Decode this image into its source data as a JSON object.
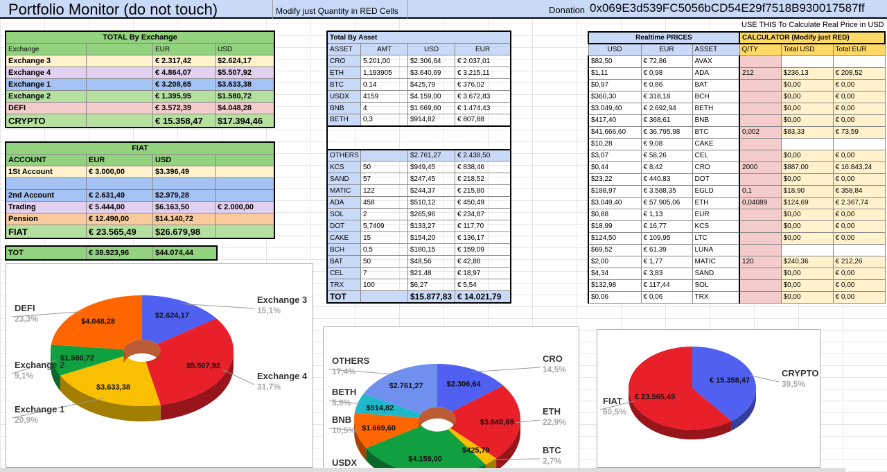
{
  "header": {
    "title": "Portfolio Monitor (do not touch)",
    "modify_note": "Modify just Quantity in RED Cells",
    "donation_label": "Donation",
    "donation_address": "0x069E3d539FC5056bCD54E29f7518B930017587ff"
  },
  "use_hint": "USE THIS To Calculate Real Price in USD",
  "exchange_table": {
    "title": "TOTAL By Exchange",
    "columns": [
      "Exchange",
      "EUR",
      "USD"
    ],
    "rows": [
      [
        "Exchange 3",
        "€ 2.317,42",
        "$2.624,17"
      ],
      [
        "Exchange 4",
        "€ 4.864,07",
        "$5.507,92"
      ],
      [
        "Exchange 1",
        "€ 3.208,65",
        "$3.633,38"
      ],
      [
        "Exchange 2",
        "€ 1.395,95",
        "$1.580,72"
      ],
      [
        "DEFI",
        "€ 3.572,39",
        "$4.048,28"
      ]
    ],
    "total": [
      "CRYPTO",
      "€ 15.358,47",
      "$17.394,46"
    ]
  },
  "fiat_table": {
    "title": "FIAT",
    "columns": [
      "ACCOUNT",
      "EUR",
      "USD"
    ],
    "rows": [
      [
        "1St Account",
        "€ 3.000,00",
        "$3.396,49",
        ""
      ],
      [
        "",
        "",
        " ",
        ""
      ],
      [
        "2nd Account",
        "€ 2.631,49",
        "$2.979,28",
        ""
      ],
      [
        "Trading",
        "€ 5.444,00",
        "$6.163,50",
        "€ 2.000,00"
      ],
      [
        "Pension",
        "€ 12.490,00",
        "$14.140,72",
        ""
      ]
    ],
    "total": [
      "FIAT",
      "€ 23.565,49",
      "$26.679,98"
    ]
  },
  "tot_row": [
    "TOT",
    "€ 38.923,96",
    "$44.074,44"
  ],
  "asset_table": {
    "title": "Total By Asset",
    "columns": [
      "ASSET",
      "AMT",
      "USD",
      "EUR"
    ],
    "rows": [
      [
        "CRO",
        "5.201,00",
        "$2.306,64",
        "€ 2.037,01"
      ],
      [
        "ETH",
        "1,193905",
        "$3.640,69",
        "€ 3.215,11"
      ],
      [
        "BTC",
        "0.14",
        "$425,79",
        "€ 376,02"
      ],
      [
        "USDX",
        "4159",
        "$4.159,00",
        "€ 3.672,83"
      ],
      [
        "BNB",
        "4",
        "$1.669,60",
        "€ 1.474,43"
      ],
      [
        "BETH",
        "0,3",
        "$914,82",
        "€ 807,88"
      ]
    ],
    "rows2": [
      [
        "OTHERS",
        "",
        "$2.761,27",
        "€ 2.438,50"
      ],
      [
        "KCS",
        "50",
        "$949,45",
        "€ 838,46"
      ],
      [
        "SAND",
        "57",
        "$247,45",
        "€ 218,52"
      ],
      [
        "MATIC",
        "122",
        "$244,37",
        "€ 215,80"
      ],
      [
        "ADA",
        "458",
        "$510,12",
        "€ 450,49"
      ],
      [
        "SOL",
        "2",
        "$265,96",
        "€ 234,87"
      ],
      [
        "DOT",
        "5,7409",
        "$133,27",
        "€ 117,70"
      ],
      [
        "CAKE",
        "15",
        "$154,20",
        "€ 136,17"
      ],
      [
        "BCH",
        "0,5",
        "$180,15",
        "€ 159,09"
      ],
      [
        "BAT",
        "50",
        "$48,56",
        "€ 42,88"
      ],
      [
        "CEL",
        "7",
        "$21,48",
        "€ 18,97"
      ],
      [
        "TRX",
        "100",
        "$6,27",
        "€ 5,54"
      ]
    ],
    "total": [
      "TOT",
      "",
      "$15.877,83",
      "€ 14.021,79"
    ]
  },
  "prices_table": {
    "title": "Realtime PRICES",
    "calc_title": "CALCULATOR (Modify just RED)",
    "columns": [
      "USD",
      "EUR",
      "ASSET",
      "Q/TY",
      "Total USD",
      "Total EUR"
    ],
    "rows": [
      [
        "$82,50",
        "€ 72,86",
        "AVAX",
        "",
        "",
        ""
      ],
      [
        "$1,11",
        "€ 0,98",
        "ADA",
        "212",
        "$236,13",
        "€ 208,52"
      ],
      [
        "$0,97",
        "€ 0,86",
        "BAT",
        "",
        "$0,00",
        "€ 0,00"
      ],
      [
        "$360,30",
        "€ 318,18",
        "BCH",
        "",
        "$0,00",
        "€ 0,00"
      ],
      [
        "$3.049,40",
        "€ 2.692,94",
        "BETH",
        "",
        "$0,00",
        "€ 0,00"
      ],
      [
        "$417,40",
        "€ 368,61",
        "BNB",
        "",
        "$0,00",
        "€ 0,00"
      ],
      [
        "$41.666,60",
        "€ 36.795,98",
        "BTC",
        "0,002",
        "$83,33",
        "€ 73,59"
      ],
      [
        "$10,28",
        "€ 9,08",
        "CAKE",
        "",
        "",
        ""
      ],
      [
        "$3,07",
        "€ 58,26",
        "CEL",
        "",
        "$0,00",
        "€ 0,00"
      ],
      [
        "$0,44",
        "€ 8,42",
        "CRO",
        "2000",
        "$887,00",
        "€ 16.843,24"
      ],
      [
        "$23,22",
        "€ 440,83",
        "DOT",
        "",
        "$0,00",
        "€ 0,00"
      ],
      [
        "$188,97",
        "€ 3.588,35",
        "EGLD",
        "0,1",
        "$18,90",
        "€ 358,84"
      ],
      [
        "$3.049,40",
        "€ 57.905,06",
        "ETH",
        "0,04089",
        "$124,69",
        "€ 2.367,74"
      ],
      [
        "$0,88",
        "€ 1,13",
        "EUR",
        "",
        "$0,00",
        "€ 0,00"
      ],
      [
        "$18,99",
        "€ 16,77",
        "KCS",
        "",
        "$0,00",
        "€ 0,00"
      ],
      [
        "$124,50",
        "€ 109,95",
        "LTC",
        "",
        "$0,00",
        "€ 0,00"
      ],
      [
        "$69,52",
        "€ 61,39",
        "LUNA",
        "",
        "",
        ""
      ],
      [
        "$2,00",
        "€ 1,77",
        "MATIC",
        "120",
        "$240,36",
        "€ 212,26"
      ],
      [
        "$4,34",
        "€ 3,83",
        "SAND",
        "",
        "$0,00",
        "€ 0,00"
      ],
      [
        "$132,98",
        "€ 117,44",
        "SOL",
        "",
        "$0,00",
        "€ 0,00"
      ],
      [
        "$0,06",
        "€ 0,06",
        "TRX",
        "",
        "$0,00",
        "€ 0,00"
      ]
    ]
  },
  "chart_data": [
    {
      "type": "pie",
      "title": "",
      "categories": [
        "Exchange 3",
        "Exchange 4",
        "Exchange 1",
        "Exchange 2",
        "DEFI"
      ],
      "values": [
        2624.17,
        5507.92,
        3633.38,
        1580.72,
        4048.28
      ],
      "value_labels": [
        "$2.624,17",
        "$5.507,92",
        "$3.633,38",
        "$1.580,72",
        "$4.048,28"
      ],
      "percent_labels": [
        "15,1%",
        "31,7%",
        "20,9%",
        "9,1%",
        "23,3%"
      ],
      "colors": [
        "#5060f0",
        "#e8202a",
        "#f8c000",
        "#10a040",
        "#ff6600"
      ],
      "style": "3d-donut"
    },
    {
      "type": "pie",
      "title": "",
      "categories": [
        "CRO",
        "ETH",
        "BTC",
        "USDX",
        "BNB",
        "BETH",
        "OTHERS"
      ],
      "values": [
        2306.64,
        3640.69,
        425.79,
        4159.0,
        1669.6,
        914.82,
        2761.27
      ],
      "value_labels": [
        "$2.306,64",
        "$3.640,69",
        "$425,79",
        "$4.159,00",
        "$1.669,60",
        "$914,82",
        "$2.761,27"
      ],
      "percent_labels": [
        "14,5%",
        "22,9%",
        "2,7%",
        "",
        "10,5%",
        "5,8%",
        "17,4%"
      ],
      "colors": [
        "#5060f0",
        "#e8202a",
        "#f8c000",
        "#10a040",
        "#ff6600",
        "#20b8c8",
        "#7090f0"
      ],
      "style": "3d-donut"
    },
    {
      "type": "pie",
      "title": "",
      "categories": [
        "CRYPTO",
        "FIAT"
      ],
      "values": [
        15358.47,
        23565.49
      ],
      "value_labels": [
        "€ 15.358,47",
        "€ 23.565,49"
      ],
      "percent_labels": [
        "39,5%",
        "60,5%"
      ],
      "colors": [
        "#5060f0",
        "#e8202a"
      ],
      "style": "3d-pie"
    }
  ]
}
